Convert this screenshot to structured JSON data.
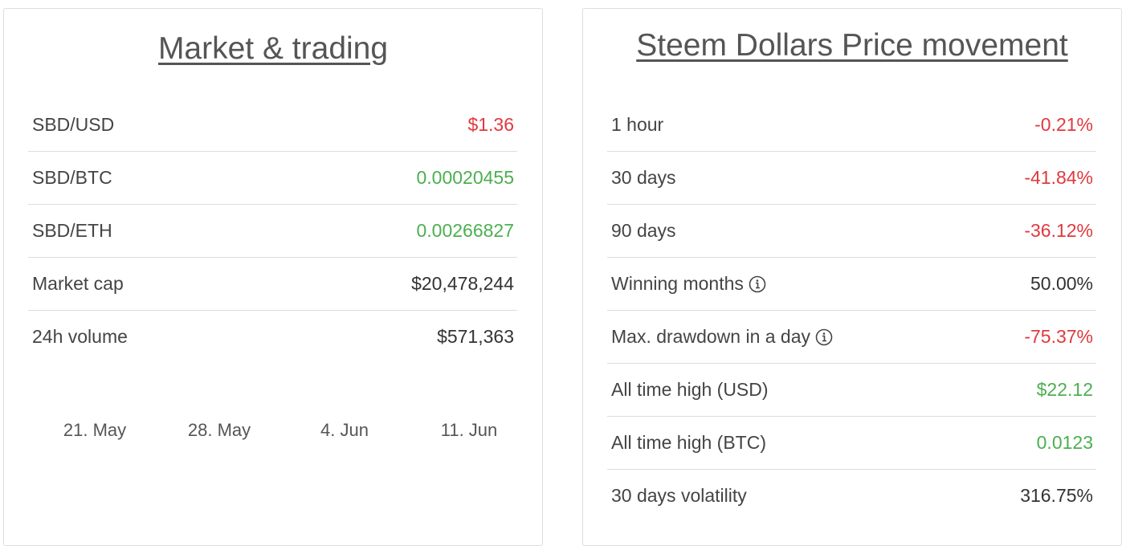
{
  "market": {
    "title": "Market & trading",
    "rows": [
      {
        "label": "SBD/USD",
        "value": "$1.36",
        "color": "#e0393e"
      },
      {
        "label": "SBD/BTC",
        "value": "0.00020455",
        "color": "#4caf50"
      },
      {
        "label": "SBD/ETH",
        "value": "0.00266827",
        "color": "#4caf50"
      },
      {
        "label": "Market cap",
        "value": "$20,478,244",
        "color": "#333333"
      },
      {
        "label": "24h volume",
        "value": "$571,363",
        "color": "#333333"
      }
    ],
    "dates": [
      "21. May",
      "28. May",
      "4. Jun",
      "11. Jun"
    ]
  },
  "movement": {
    "title": "Steem Dollars Price movement",
    "rows": [
      {
        "label": "1 hour",
        "value": "-0.21%",
        "color": "#e0393e"
      },
      {
        "label": "30 days",
        "value": "-41.84%",
        "color": "#e0393e"
      },
      {
        "label": "90 days",
        "value": "-36.12%",
        "color": "#e0393e"
      },
      {
        "label": "Winning months",
        "value": "50.00%",
        "color": "#333333"
      },
      {
        "label": "Max. drawdown in a day",
        "value": "-75.37%",
        "color": "#e0393e"
      },
      {
        "label": "All time high (USD)",
        "value": "$22.12",
        "color": "#4caf50"
      },
      {
        "label": "All time high (BTC)",
        "value": "0.0123",
        "color": "#4caf50"
      },
      {
        "label": "30 days volatility",
        "value": "316.75%",
        "color": "#333333"
      }
    ]
  }
}
